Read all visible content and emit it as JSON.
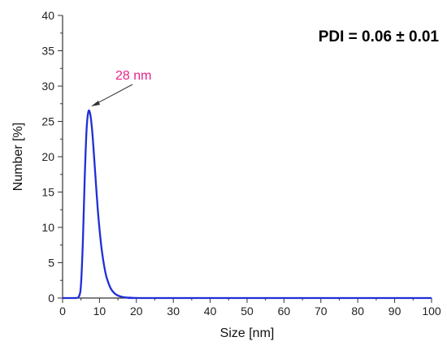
{
  "chart_data": {
    "type": "line",
    "xlabel": "Size [nm]",
    "ylabel": "Number [%]",
    "xlim": [
      0,
      100
    ],
    "ylim": [
      0,
      40
    ],
    "xticks": [
      0,
      10,
      20,
      30,
      40,
      50,
      60,
      70,
      80,
      90,
      100
    ],
    "yticks": [
      0,
      5,
      10,
      15,
      20,
      25,
      30,
      35,
      40
    ],
    "grid": false,
    "series": [
      {
        "color": "#1f2fd6",
        "x": [
          0,
          3.5,
          4.5,
          5.0,
          5.5,
          6.0,
          6.5,
          7.0,
          7.5,
          8.0,
          8.5,
          9.0,
          9.5,
          10.0,
          10.5,
          11.0,
          11.5,
          12.0,
          13.0,
          14.0,
          15.0,
          16.0,
          17.0,
          18.0,
          19.0,
          20.0,
          25.0,
          100.0
        ],
        "y": [
          0,
          0,
          0.3,
          2.0,
          8.0,
          17.0,
          23.8,
          26.4,
          26.0,
          23.8,
          20.3,
          16.5,
          12.8,
          9.8,
          7.3,
          5.4,
          3.9,
          2.8,
          1.4,
          0.7,
          0.35,
          0.18,
          0.09,
          0.05,
          0.02,
          0.01,
          0,
          0
        ]
      }
    ],
    "annotations": [
      {
        "text": "28 nm",
        "color": "#e8228a",
        "x": 7.5,
        "y": 26.4
      },
      {
        "text": "PDI = 0.06 ± 0.01",
        "color": "#000000"
      }
    ]
  }
}
